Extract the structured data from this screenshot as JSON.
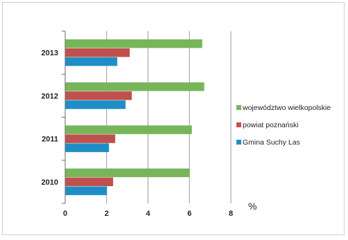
{
  "chart_data": {
    "type": "bar",
    "orientation": "horizontal",
    "categories": [
      "2010",
      "2011",
      "2012",
      "2013"
    ],
    "series": [
      {
        "name": "województwo wielkopolskie",
        "color": "#78b55a",
        "values": [
          6.0,
          6.1,
          6.7,
          6.6
        ]
      },
      {
        "name": "powiat poznański",
        "color": "#c0504d",
        "values": [
          2.3,
          2.4,
          3.2,
          3.1
        ]
      },
      {
        "name": "Gmina Suchy Las",
        "color": "#1f8ec6",
        "values": [
          2.0,
          2.1,
          2.9,
          2.5
        ]
      }
    ],
    "xlim": [
      0,
      8
    ],
    "x_ticks": [
      "0",
      "2",
      "4",
      "6",
      "8"
    ],
    "unit_label": "%",
    "grid": "vertical",
    "legend_position": "right"
  }
}
